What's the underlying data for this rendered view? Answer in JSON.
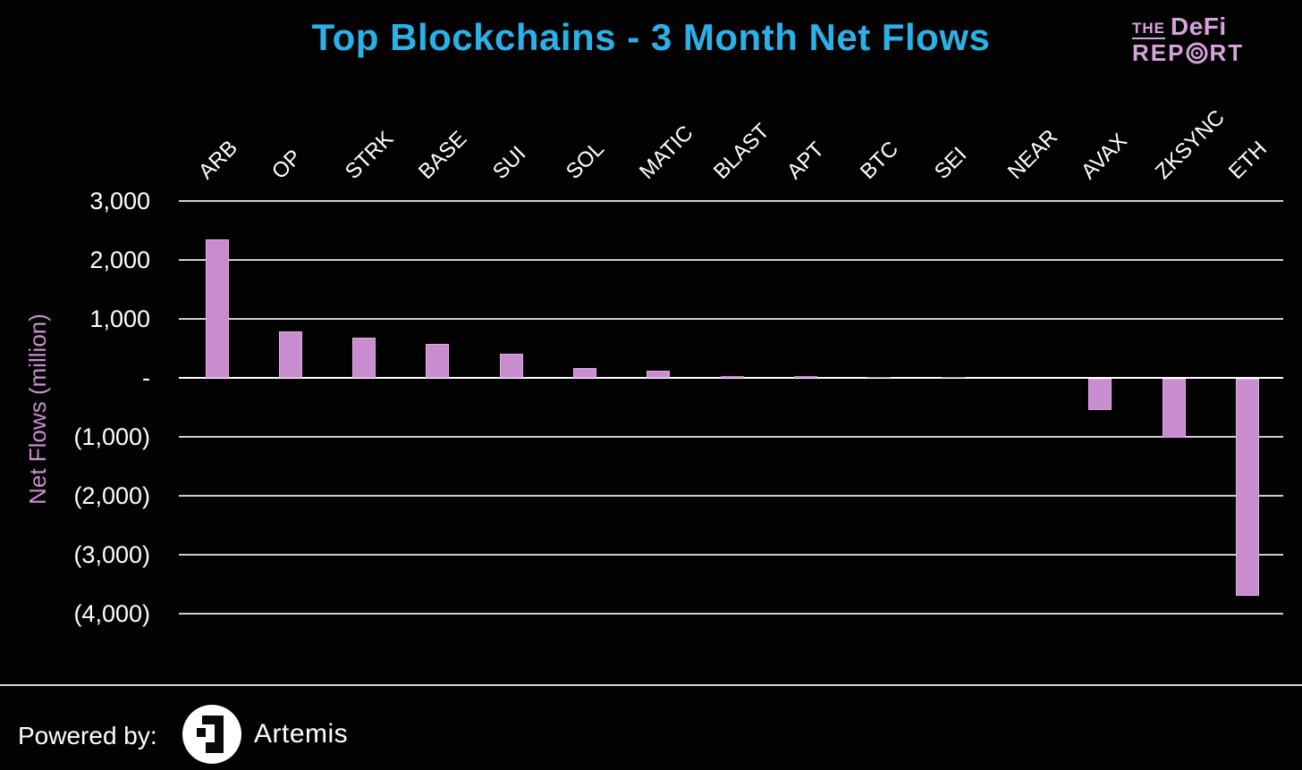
{
  "title": "Top Blockchains - 3 Month Net Flows",
  "title_color": "#2bb1e7",
  "brand": {
    "the": "THE",
    "defi": "DeFi",
    "report_pre": "REP",
    "report_post": "RT",
    "o_icon": "bullseye-o-icon",
    "color": "#d7a3dc"
  },
  "footer": {
    "powered_by": "Powered by:",
    "logo_icon": "artemis-pixel-a-icon",
    "logo_text": "Artemis"
  },
  "chart_data": {
    "type": "bar",
    "title": "Top Blockchains - 3 Month Net Flows",
    "xlabel": "",
    "ylabel": "Net Flows (million)",
    "categories": [
      "ARB",
      "OP",
      "STRK",
      "BASE",
      "SUI",
      "SOL",
      "MATIC",
      "BLAST",
      "APT",
      "BTC",
      "SEI",
      "NEAR",
      "AVAX",
      "ZKSYNC",
      "ETH"
    ],
    "values": [
      2350,
      790,
      685,
      580,
      410,
      170,
      115,
      35,
      25,
      20,
      15,
      -10,
      -530,
      -1005,
      -3680
    ],
    "ylim": [
      -4000,
      3000
    ],
    "yticks": [
      {
        "value": 3000,
        "label": "3,000"
      },
      {
        "value": 2000,
        "label": "2,000"
      },
      {
        "value": 1000,
        "label": "1,000"
      },
      {
        "value": 0,
        "label": "-"
      },
      {
        "value": -1000,
        "label": "(1,000)"
      },
      {
        "value": -2000,
        "label": "(2,000)"
      },
      {
        "value": -3000,
        "label": "(3,000)"
      },
      {
        "value": -4000,
        "label": "(4,000)"
      }
    ],
    "grid": true,
    "legend": false,
    "background_color": "#020202",
    "bar_color": "#c98ccf",
    "bar_border_color": "#e0abe4",
    "gridline_color": "#e6e6e6",
    "zero_line_color": "#ffffff",
    "tick_label_color": "#ffffff",
    "ylabel_color": "#c98fd0"
  }
}
